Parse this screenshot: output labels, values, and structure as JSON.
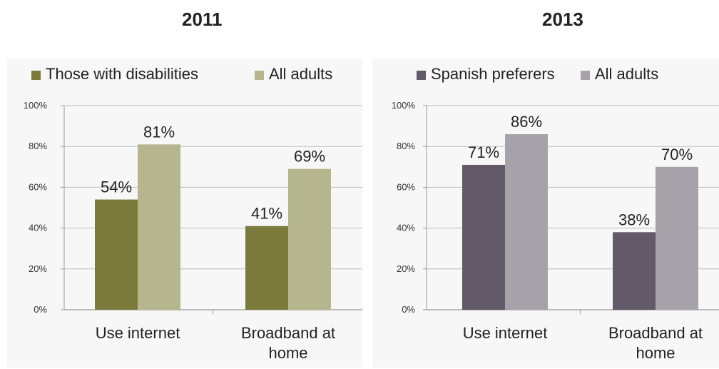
{
  "charts": [
    {
      "title": "2011",
      "colors": [
        "#7a7b3a",
        "#b5b68e"
      ],
      "chart_data": {
        "type": "bar",
        "categories": [
          "Use internet",
          "Broadband at home"
        ],
        "category_lines": [
          [
            "Use internet"
          ],
          [
            "Broadband at",
            "home"
          ]
        ],
        "series": [
          {
            "name": "Those with disabilities",
            "values": [
              54,
              41
            ]
          },
          {
            "name": "All adults",
            "values": [
              81,
              69
            ]
          }
        ],
        "data_labels": [
          [
            "54%",
            "41%"
          ],
          [
            "81%",
            "69%"
          ]
        ],
        "ylim": [
          0,
          100
        ],
        "yticks": [
          "0%",
          "20%",
          "40%",
          "60%",
          "80%",
          "100%"
        ],
        "legend": "top",
        "grid": true
      }
    },
    {
      "title": "2013",
      "colors": [
        "#625a68",
        "#a7a2aa"
      ],
      "chart_data": {
        "type": "bar",
        "categories": [
          "Use internet",
          "Broadband at home"
        ],
        "category_lines": [
          [
            "Use internet"
          ],
          [
            "Broadband at",
            "home"
          ]
        ],
        "series": [
          {
            "name": "Spanish preferers",
            "values": [
              71,
              38
            ]
          },
          {
            "name": "All adults",
            "values": [
              86,
              70
            ]
          }
        ],
        "data_labels": [
          [
            "71%",
            "38%"
          ],
          [
            "86%",
            "70%"
          ]
        ],
        "ylim": [
          0,
          100
        ],
        "yticks": [
          "0%",
          "20%",
          "40%",
          "60%",
          "80%",
          "100%"
        ],
        "legend": "top",
        "grid": true
      }
    }
  ]
}
